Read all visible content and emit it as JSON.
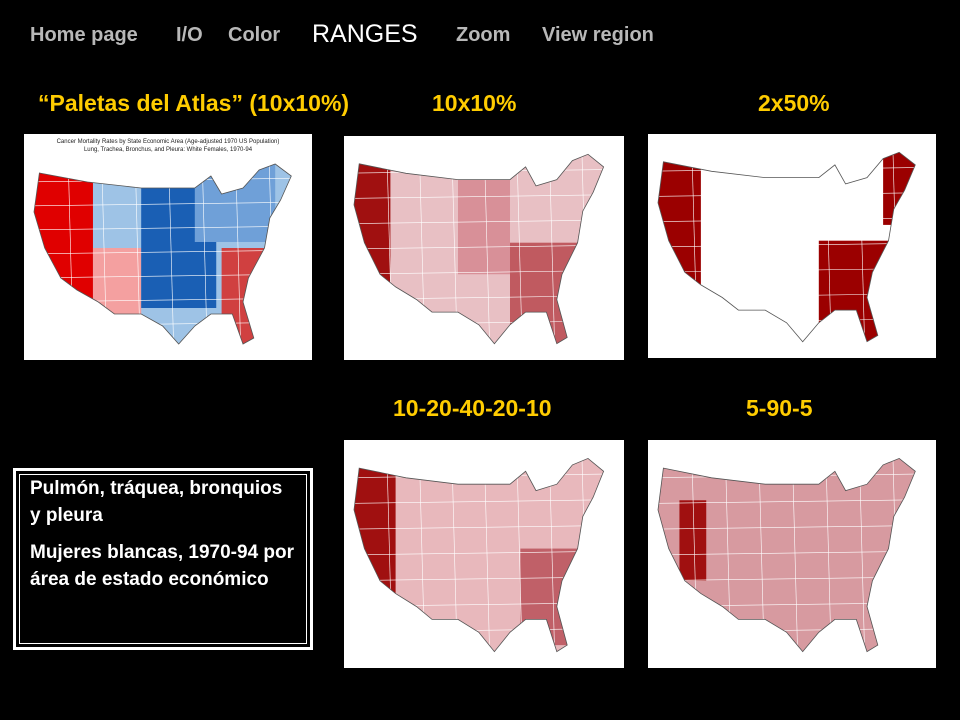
{
  "nav": {
    "items": [
      "Home page",
      "I/O",
      "Color",
      "RANGES",
      "Zoom",
      "View region"
    ],
    "active": 3
  },
  "headings": [
    "“Paletas del Atlas” (10x10%)",
    "10x10%",
    "2x50%",
    "10-20-40-20-10",
    "5-90-5"
  ],
  "atlas_map": {
    "title": "Cancer Mortality Rates by State Economic Area (Age-adjusted 1970 US Population)",
    "subtitle": "Lung, Trachea, Bronchus, and Pleura: White Females, 1970-94"
  },
  "note": {
    "paragraphs": [
      "Pulmón, tráquea, bronquios y pleura",
      "Mujeres blancas, 1970-94 por área de estado económico"
    ]
  }
}
